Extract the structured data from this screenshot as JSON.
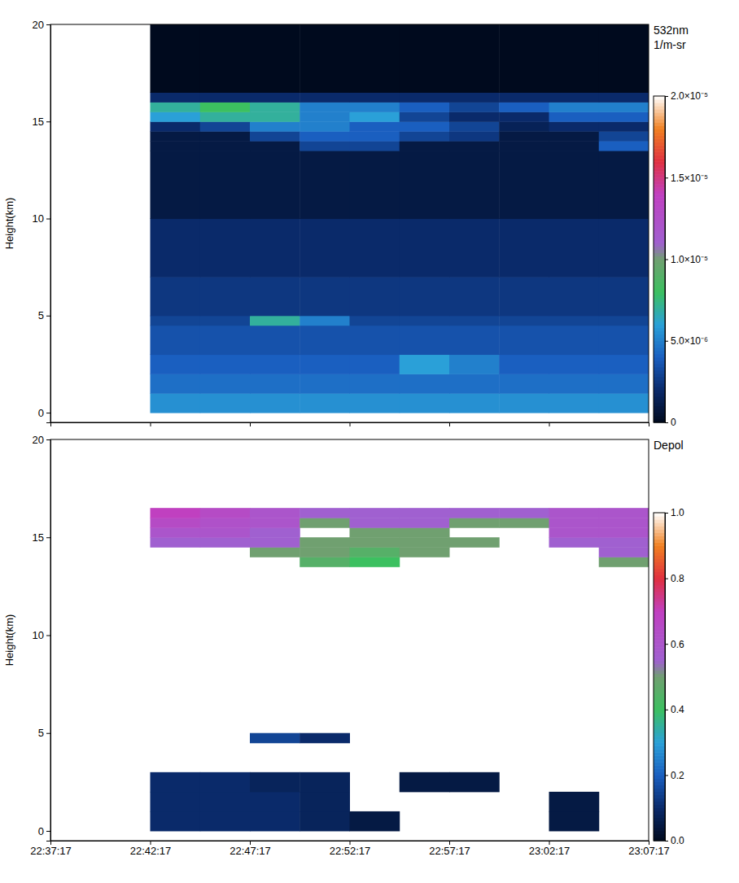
{
  "chart_data": [
    {
      "type": "heatmap",
      "ylabel": "Height(km)",
      "tick_labels": "y",
      "xlim": [
        "22:37:17",
        "23:07:17"
      ],
      "xticks": [
        "22:37:17",
        "22:42:17",
        "22:47:17",
        "22:52:17",
        "22:57:17",
        "23:02:17",
        "23:07:17"
      ],
      "ylim": [
        -0.5,
        20
      ],
      "yticks": [
        0,
        5,
        10,
        15,
        20
      ],
      "x_edges": [
        "22:42:17",
        "22:44:47",
        "22:47:17",
        "22:49:47",
        "22:52:17",
        "22:54:47",
        "22:57:17",
        "22:59:47",
        "23:02:17",
        "23:04:47",
        "23:07:17"
      ],
      "y_edges": [
        0,
        1,
        2,
        3,
        4.5,
        5,
        7,
        10,
        13.5,
        14,
        14.5,
        15,
        15.5,
        16,
        16.5,
        20
      ],
      "cells": [
        [
          5.5e-06,
          5.5e-06,
          5.5e-06,
          5.5e-06,
          5.5e-06,
          5.5e-06,
          5.5e-06,
          5.5e-06,
          5.5e-06,
          5.5e-06
        ],
        [
          4.5e-06,
          4.5e-06,
          4.5e-06,
          4.5e-06,
          4.5e-06,
          4.5e-06,
          4.5e-06,
          4.5e-06,
          4.5e-06,
          4.5e-06
        ],
        [
          4e-06,
          4e-06,
          4e-06,
          4e-06,
          4e-06,
          6e-06,
          5e-06,
          4e-06,
          4e-06,
          4e-06
        ],
        [
          3.5e-06,
          3.5e-06,
          3.5e-06,
          3.5e-06,
          3.5e-06,
          3.5e-06,
          3.5e-06,
          3.5e-06,
          3.5e-06,
          3.5e-06
        ],
        [
          3e-06,
          3e-06,
          7e-06,
          5e-06,
          3e-06,
          3e-06,
          3e-06,
          3e-06,
          3e-06,
          3e-06
        ],
        [
          2.5e-06,
          2.5e-06,
          2.5e-06,
          2.5e-06,
          2.5e-06,
          2.5e-06,
          2.5e-06,
          2.5e-06,
          2.5e-06,
          2.5e-06
        ],
        [
          2e-06,
          2e-06,
          2e-06,
          2e-06,
          2e-06,
          2e-06,
          2e-06,
          2e-06,
          2e-06,
          2e-06
        ],
        [
          1e-06,
          1e-06,
          1e-06,
          1e-06,
          1e-06,
          1e-06,
          1e-06,
          1e-06,
          1e-06,
          1e-06
        ],
        [
          1e-06,
          1e-06,
          1e-06,
          3e-06,
          3e-06,
          1e-06,
          1e-06,
          1e-06,
          1e-06,
          4e-06
        ],
        [
          1e-06,
          1e-06,
          3e-06,
          4e-06,
          4e-06,
          3e-06,
          2.5e-06,
          1e-06,
          1e-06,
          3e-06
        ],
        [
          2e-06,
          3e-06,
          5e-06,
          5e-06,
          4e-06,
          4e-06,
          3e-06,
          1.5e-06,
          2e-06,
          2e-06
        ],
        [
          6e-06,
          7e-06,
          7e-06,
          5e-06,
          6e-06,
          3e-06,
          2e-06,
          2e-06,
          4e-06,
          4e-06
        ],
        [
          7e-06,
          8e-06,
          7e-06,
          5e-06,
          5e-06,
          4e-06,
          3e-06,
          4e-06,
          5e-06,
          5e-06
        ],
        [
          2e-06,
          2e-06,
          2e-06,
          2e-06,
          2e-06,
          2e-06,
          2e-06,
          2e-06,
          2e-06,
          2e-06
        ],
        [
          0,
          0,
          0,
          0,
          0,
          0,
          0,
          0,
          0,
          0
        ]
      ],
      "colorbar": {
        "title": "532nm",
        "units": "1/m-sr",
        "lim": [
          0,
          2e-05
        ],
        "ticks": [
          0,
          {
            "value": 5e-06,
            "label": "5.0×10⁻⁶"
          },
          {
            "value": 1e-05,
            "label": "1.0×10⁻⁵"
          },
          {
            "value": 1.5e-05,
            "label": "1.5×10⁻⁵"
          },
          {
            "value": 2e-05,
            "label": "2.0×10⁻⁵"
          }
        ]
      }
    },
    {
      "type": "heatmap",
      "ylabel": "Height(km)",
      "xlim": [
        "22:37:17",
        "23:07:17"
      ],
      "xticks": [
        "22:37:17",
        "22:42:17",
        "22:47:17",
        "22:52:17",
        "22:57:17",
        "23:02:17",
        "23:07:17"
      ],
      "ylim": [
        -0.5,
        20
      ],
      "yticks": [
        0,
        5,
        10,
        15,
        20
      ],
      "x_edges": [
        "22:42:17",
        "22:44:47",
        "22:47:17",
        "22:49:47",
        "22:52:17",
        "22:54:47",
        "22:57:17",
        "22:59:47",
        "23:02:17",
        "23:04:47",
        "23:07:17"
      ],
      "y_edges": [
        0,
        1,
        2,
        3,
        4.5,
        5,
        7,
        10,
        13.5,
        14,
        14.5,
        15,
        15.5,
        16,
        16.5,
        20
      ],
      "cells": [
        [
          0.1,
          0.1,
          0.1,
          0.08,
          0.05,
          null,
          null,
          null,
          0.05,
          null
        ],
        [
          0.1,
          0.1,
          0.1,
          0.08,
          null,
          null,
          null,
          null,
          0.05,
          null
        ],
        [
          0.1,
          0.1,
          0.08,
          0.08,
          null,
          0.05,
          0.05,
          null,
          null,
          null
        ],
        [
          null,
          null,
          null,
          null,
          null,
          null,
          null,
          null,
          null,
          null
        ],
        [
          null,
          null,
          0.15,
          0.1,
          null,
          null,
          null,
          null,
          null,
          null
        ],
        [
          null,
          null,
          null,
          null,
          null,
          null,
          null,
          null,
          null,
          null
        ],
        [
          null,
          null,
          null,
          null,
          null,
          null,
          null,
          null,
          null,
          null
        ],
        [
          null,
          null,
          null,
          null,
          null,
          null,
          null,
          null,
          null,
          null
        ],
        [
          null,
          null,
          null,
          0.45,
          0.4,
          null,
          null,
          null,
          null,
          0.5
        ],
        [
          null,
          null,
          0.5,
          0.5,
          0.45,
          0.5,
          null,
          null,
          null,
          0.55
        ],
        [
          0.55,
          0.55,
          0.55,
          0.5,
          0.5,
          0.5,
          0.5,
          null,
          0.55,
          0.55
        ],
        [
          0.6,
          0.6,
          0.55,
          null,
          0.5,
          0.5,
          null,
          null,
          0.6,
          0.6
        ],
        [
          0.65,
          0.62,
          0.6,
          0.5,
          0.55,
          0.55,
          0.5,
          0.5,
          0.6,
          0.6
        ],
        [
          0.7,
          0.65,
          0.6,
          0.55,
          0.55,
          0.55,
          0.55,
          0.55,
          0.6,
          0.6
        ],
        [
          null,
          null,
          null,
          null,
          null,
          null,
          null,
          null,
          null,
          null
        ]
      ],
      "colorbar": {
        "title": "Depol",
        "lim": [
          0,
          1
        ],
        "ticks": [
          {
            "value": 0,
            "label": "0.0"
          },
          0.2,
          0.4,
          0.6,
          0.8,
          {
            "value": 1,
            "label": "1.0"
          }
        ]
      }
    }
  ]
}
